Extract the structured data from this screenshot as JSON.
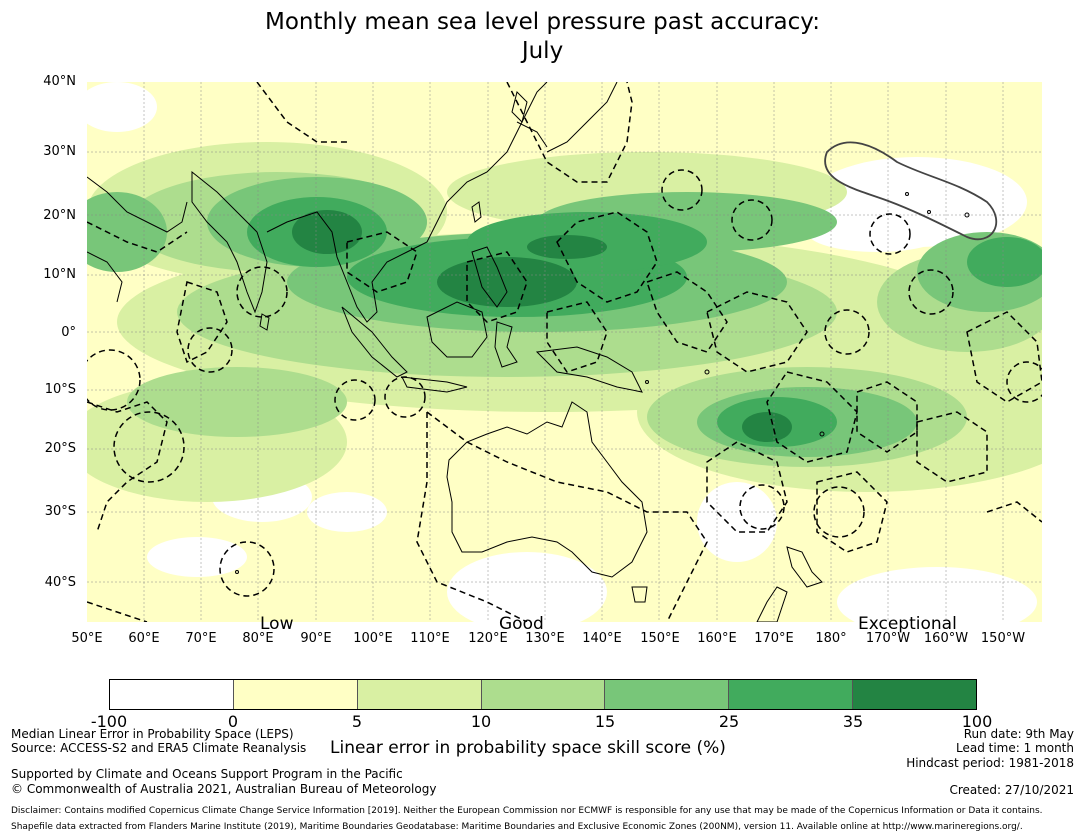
{
  "title_line1": "Monthly mean sea level pressure past accuracy:",
  "title_line2": "July",
  "lat_labels": [
    "40°N",
    "30°N",
    "20°N",
    "10°N",
    "0°",
    "10°S",
    "20°S",
    "30°S",
    "40°S"
  ],
  "lon_labels": [
    "50°E",
    "60°E",
    "70°E",
    "80°E",
    "90°E",
    "100°E",
    "110°E",
    "120°E",
    "130°E",
    "140°E",
    "150°E",
    "160°E",
    "170°E",
    "180°",
    "170°W",
    "160°W",
    "150°W"
  ],
  "skill_bands": [
    "Low",
    "Good",
    "Exceptional"
  ],
  "colorbar": {
    "ticks": [
      "-100",
      "0",
      "5",
      "10",
      "15",
      "25",
      "35",
      "100"
    ],
    "colors": [
      "#ffffff",
      "#ffffc5",
      "#d9f0a3",
      "#addd8e",
      "#78c679",
      "#41ab5d",
      "#238443"
    ],
    "label": "Linear error in probability space skill score (%)"
  },
  "map_colors": {
    "land_outline": "#000000",
    "contour": "#000000"
  },
  "footer_left": {
    "line1": "Median Linear Error in Probability Space (LEPS)",
    "line2": "Source: ACCESS-S2 and ERA5 Climate Reanalysis",
    "line3": "Supported by Climate and Oceans Support Program in the Pacific",
    "line4": "© Commonwealth of Australia 2021, Australian Bureau of Meteorology"
  },
  "footer_right": {
    "run_date": "Run date: 9th May",
    "lead_time": "Lead time: 1 month",
    "hindcast": "Hindcast period: 1981-2018",
    "created": "Created: 27/10/2021"
  },
  "disclaimer1": "Disclaimer: Contains modified Copernicus Climate Change Service Information [2019]. Neither the European Commission nor ECMWF is responsible for any use that may be made of the Copernicus Information or Data it contains.",
  "disclaimer2": "Shapefile data extracted from Flanders Marine Institute (2019), Maritime Boundaries Geodatabase: Maritime Boundaries and Exclusive Economic Zones (200NM), version 11. Available online at http://www.marineregions.org/."
}
